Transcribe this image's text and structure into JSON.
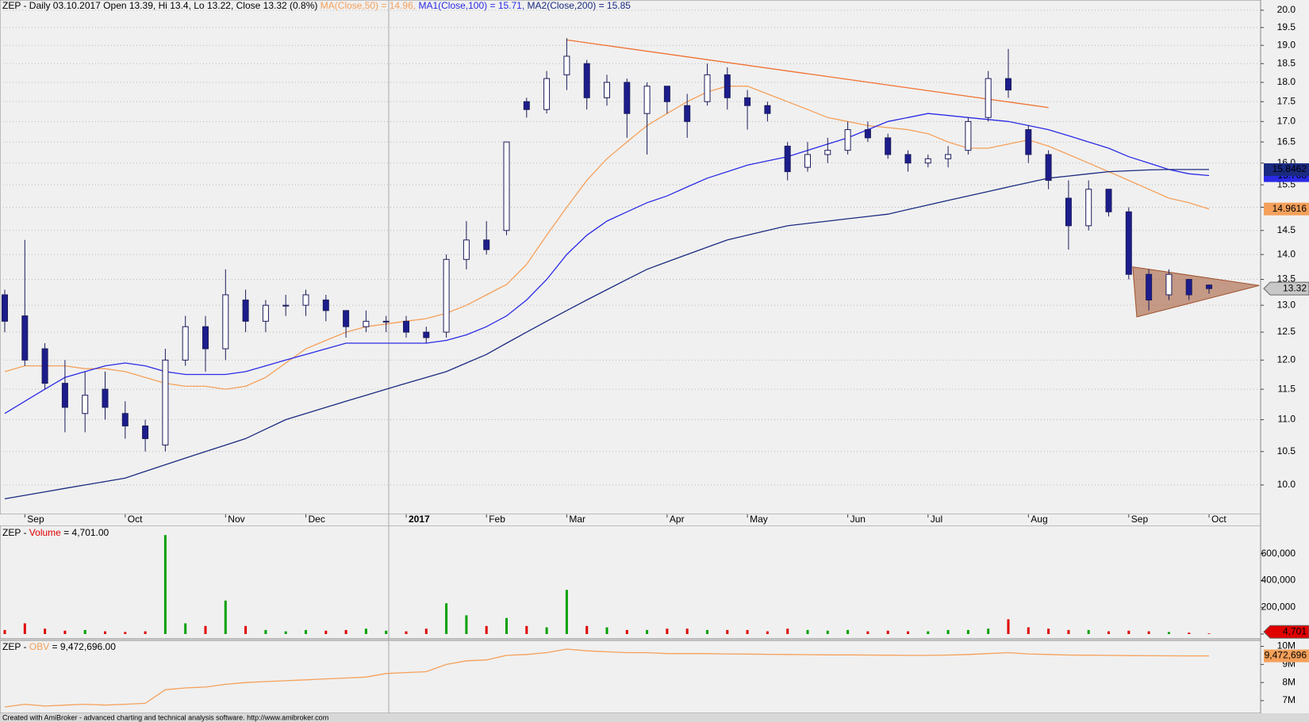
{
  "chart_data": [
    {
      "type": "candlestick",
      "title": "ZEP - Daily 03.10.2017 Open 13.39, Hi 13.4, Lo 13.22, Close 13.32 (0.8%)",
      "categories": [
        null,
        "Sep",
        null,
        null,
        null,
        null,
        "Oct",
        null,
        null,
        null,
        null,
        "Nov",
        null,
        null,
        null,
        "Dec",
        null,
        null,
        null,
        null,
        "2017",
        null,
        null,
        null,
        "Feb",
        null,
        null,
        null,
        "Mar",
        null,
        null,
        null,
        null,
        "Apr",
        null,
        null,
        null,
        "May",
        null,
        null,
        null,
        null,
        "Jun",
        null,
        null,
        null,
        "Jul",
        null,
        null,
        null,
        null,
        "Aug",
        null,
        null,
        null,
        null,
        "Sep",
        null,
        null,
        null,
        "Oct"
      ],
      "open": [
        13.2,
        12.8,
        12.2,
        11.6,
        11.1,
        11.5,
        11.1,
        10.9,
        10.6,
        12.0,
        12.6,
        12.2,
        13.1,
        12.7,
        13.0,
        13.0,
        13.1,
        12.9,
        12.6,
        12.7,
        12.7,
        12.5,
        12.5,
        13.9,
        14.3,
        14.5,
        17.5,
        17.3,
        18.2,
        18.5,
        17.6,
        18.0,
        17.2,
        17.9,
        17.4,
        17.5,
        18.2,
        17.6,
        17.4,
        16.4,
        15.9,
        16.2,
        16.3,
        16.8,
        16.6,
        16.2,
        16.0,
        16.1,
        16.3,
        17.1,
        18.1,
        16.8,
        16.2,
        15.2,
        14.6,
        15.4,
        14.9,
        13.6,
        13.2,
        13.5,
        13.39
      ],
      "high": [
        13.3,
        14.3,
        12.3,
        12.0,
        11.8,
        11.8,
        11.3,
        11.0,
        12.2,
        12.8,
        12.8,
        13.7,
        13.3,
        13.1,
        13.2,
        13.3,
        13.2,
        12.9,
        12.9,
        12.8,
        12.8,
        12.6,
        14.0,
        14.7,
        14.7,
        16.5,
        17.6,
        18.3,
        19.2,
        18.6,
        18.2,
        18.1,
        18.0,
        17.9,
        17.7,
        18.5,
        18.4,
        17.8,
        17.5,
        16.5,
        16.5,
        16.6,
        17.0,
        17.0,
        16.7,
        16.3,
        16.2,
        16.4,
        17.1,
        18.3,
        18.9,
        16.9,
        16.3,
        15.6,
        15.6,
        15.4,
        15.0,
        13.7,
        13.7,
        13.5,
        13.4
      ],
      "low": [
        12.5,
        11.9,
        11.5,
        10.8,
        10.8,
        11.0,
        10.7,
        10.5,
        10.5,
        11.9,
        11.8,
        12.0,
        12.5,
        12.5,
        12.8,
        12.8,
        12.7,
        12.4,
        12.5,
        12.5,
        12.4,
        12.3,
        12.4,
        13.7,
        14.0,
        14.4,
        17.1,
        17.2,
        17.8,
        17.3,
        17.4,
        16.6,
        16.2,
        17.2,
        16.6,
        17.4,
        17.3,
        16.8,
        17.0,
        15.6,
        15.8,
        16.0,
        16.2,
        16.5,
        16.1,
        15.8,
        15.9,
        15.9,
        16.2,
        17.0,
        17.6,
        16.0,
        15.4,
        14.1,
        14.5,
        14.8,
        13.5,
        12.9,
        13.1,
        13.1,
        13.22
      ],
      "close": [
        12.7,
        12.0,
        11.6,
        11.2,
        11.4,
        11.2,
        10.9,
        10.7,
        12.0,
        12.6,
        12.2,
        13.2,
        12.7,
        13.0,
        13.0,
        13.2,
        12.9,
        12.6,
        12.7,
        12.7,
        12.5,
        12.4,
        13.9,
        14.3,
        14.1,
        16.5,
        17.3,
        18.1,
        18.7,
        17.6,
        18.0,
        17.2,
        17.9,
        17.5,
        17.0,
        18.2,
        17.6,
        17.4,
        17.2,
        15.8,
        16.2,
        16.3,
        16.8,
        16.6,
        16.2,
        16.0,
        16.1,
        16.2,
        17.0,
        18.1,
        17.8,
        16.2,
        15.6,
        14.6,
        15.4,
        14.9,
        13.6,
        13.1,
        13.6,
        13.2,
        13.32
      ],
      "last_close": 13.32,
      "up_color": "#ffffff",
      "down_color": "#1c1c8c",
      "wick_color": "#1c1c5c",
      "series": [
        {
          "name": "MA(Close,50) = 14.96,",
          "color": "#f5a05a",
          "last_value": 14.9616,
          "values": [
            11.8,
            11.9,
            11.9,
            11.9,
            11.85,
            11.85,
            11.8,
            11.7,
            11.6,
            11.55,
            11.55,
            11.5,
            11.55,
            11.7,
            11.95,
            12.2,
            12.35,
            12.5,
            12.6,
            12.65,
            12.7,
            12.75,
            12.85,
            13.0,
            13.2,
            13.4,
            13.8,
            14.4,
            15.0,
            15.6,
            16.1,
            16.5,
            16.9,
            17.2,
            17.5,
            17.75,
            17.9,
            17.9,
            17.7,
            17.5,
            17.3,
            17.1,
            17.0,
            16.9,
            16.85,
            16.8,
            16.7,
            16.5,
            16.35,
            16.35,
            16.45,
            16.55,
            16.4,
            16.2,
            16.0,
            15.8,
            15.6,
            15.4,
            15.2,
            15.1,
            14.96
          ]
        },
        {
          "name": "MA1(Close,100) = 15.71,",
          "color": "#2a2ae6",
          "last_value": 15.708,
          "values": [
            11.1,
            11.3,
            11.5,
            11.7,
            11.8,
            11.9,
            11.95,
            11.9,
            11.8,
            11.75,
            11.75,
            11.75,
            11.8,
            11.9,
            12.0,
            12.1,
            12.2,
            12.3,
            12.3,
            12.3,
            12.3,
            12.3,
            12.35,
            12.45,
            12.6,
            12.8,
            13.1,
            13.5,
            14.0,
            14.4,
            14.7,
            14.9,
            15.1,
            15.25,
            15.45,
            15.65,
            15.8,
            15.95,
            16.05,
            16.15,
            16.3,
            16.45,
            16.6,
            16.8,
            17.0,
            17.1,
            17.2,
            17.15,
            17.1,
            17.05,
            17.0,
            16.9,
            16.8,
            16.65,
            16.5,
            16.35,
            16.15,
            16.0,
            15.85,
            15.75,
            15.71
          ]
        },
        {
          "name": "MA2(Close,200) = 15.85",
          "color": "#1a2a80",
          "last_value": 15.8462,
          "values": [
            9.8,
            9.85,
            9.9,
            9.95,
            10.0,
            10.05,
            10.1,
            10.2,
            10.3,
            10.4,
            10.5,
            10.6,
            10.7,
            10.85,
            11.0,
            11.1,
            11.2,
            11.3,
            11.4,
            11.5,
            11.6,
            11.7,
            11.8,
            11.95,
            12.1,
            12.3,
            12.5,
            12.7,
            12.9,
            13.1,
            13.3,
            13.5,
            13.7,
            13.85,
            14.0,
            14.15,
            14.3,
            14.4,
            14.5,
            14.6,
            14.65,
            14.7,
            14.75,
            14.8,
            14.85,
            14.95,
            15.05,
            15.15,
            15.25,
            15.35,
            15.45,
            15.55,
            15.65,
            15.7,
            15.75,
            15.8,
            15.82,
            15.84,
            15.85,
            15.85,
            15.85
          ]
        }
      ],
      "trendline": {
        "color": "#f07030",
        "x": [
          28,
          52
        ],
        "y": [
          19.15,
          17.35
        ]
      },
      "triangle": {
        "color": "#a0522d",
        "x": [
          56.2,
          62.5,
          56.4
        ],
        "y": [
          13.75,
          13.38,
          12.78
        ]
      },
      "log_scale": true,
      "grid": true,
      "ylim": [
        9.58,
        20.3
      ],
      "yticks": [
        {
          "value": 10,
          "label": "10.0"
        },
        {
          "value": 10.5,
          "label": "10.5"
        },
        {
          "value": 11,
          "label": "11.0"
        },
        {
          "value": 11.5,
          "label": "11.5"
        },
        {
          "value": 12,
          "label": "12.0"
        },
        {
          "value": 12.5,
          "label": "12.5"
        },
        {
          "value": 13,
          "label": "13.0"
        },
        {
          "value": 13.5,
          "label": "13.5"
        },
        {
          "value": 14,
          "label": "14.0"
        },
        {
          "value": 14.5,
          "label": "14.5"
        },
        {
          "value": 15,
          "label": "15.0"
        },
        {
          "value": 15.5,
          "label": "15.5"
        },
        {
          "value": 16,
          "label": "16.0"
        },
        {
          "value": 16.5,
          "label": "16.5"
        },
        {
          "value": 17,
          "label": "17.0"
        },
        {
          "value": 17.5,
          "label": "17.5"
        },
        {
          "value": 18,
          "label": "18.0"
        },
        {
          "value": 18.5,
          "label": "18.5"
        },
        {
          "value": 19,
          "label": "19.0"
        },
        {
          "value": 19.5,
          "label": "19.5"
        },
        {
          "value": 20,
          "label": "20.0"
        }
      ]
    },
    {
      "type": "bar",
      "title": "ZEP -",
      "series_name": "Volume",
      "title_value": "= 4,701.00",
      "up_color": "#00a000",
      "down_color": "#e00000",
      "values": [
        30000,
        80000,
        40000,
        25000,
        30000,
        20000,
        15000,
        20000,
        740000,
        80000,
        60000,
        250000,
        60000,
        30000,
        20000,
        30000,
        25000,
        30000,
        40000,
        25000,
        20000,
        40000,
        230000,
        140000,
        60000,
        120000,
        60000,
        50000,
        330000,
        60000,
        50000,
        30000,
        30000,
        40000,
        40000,
        30000,
        30000,
        30000,
        20000,
        40000,
        30000,
        25000,
        30000,
        20000,
        25000,
        20000,
        20000,
        30000,
        30000,
        40000,
        110000,
        50000,
        40000,
        30000,
        30000,
        20000,
        25000,
        20000,
        15000,
        10000,
        4701
      ],
      "last_label": "4,701",
      "ylim": [
        0,
        800000
      ],
      "yticks": [
        0,
        {
          "value": 200000,
          "label": "200,000"
        },
        {
          "value": 400000,
          "label": "400,000"
        },
        {
          "value": 600000,
          "label": "600,000"
        }
      ]
    },
    {
      "type": "line",
      "title": "ZEP -",
      "series_name": "OBV",
      "title_value": "= 9,472,696.00",
      "color": "#f5a05a",
      "values": [
        6650000,
        6800000,
        6700000,
        6750000,
        6800000,
        6750000,
        6800000,
        6850000,
        7600000,
        7700000,
        7750000,
        7900000,
        8000000,
        8050000,
        8100000,
        8150000,
        8200000,
        8250000,
        8300000,
        8500000,
        8550000,
        8600000,
        9000000,
        9200000,
        9250000,
        9500000,
        9550000,
        9650000,
        9850000,
        9750000,
        9700000,
        9650000,
        9650000,
        9600000,
        9600000,
        9600000,
        9580000,
        9570000,
        9560000,
        9550000,
        9540000,
        9530000,
        9530000,
        9520000,
        9510000,
        9500000,
        9500000,
        9520000,
        9550000,
        9600000,
        9650000,
        9580000,
        9550000,
        9520000,
        9510000,
        9500000,
        9490000,
        9480000,
        9475000,
        9473000,
        9472696
      ],
      "last_label": "9,472,696",
      "ylim": [
        6300000,
        10330000
      ],
      "yticks": [
        {
          "value": 7000000,
          "label": "7M"
        },
        {
          "value": 8000000,
          "label": "8M"
        },
        {
          "value": 9000000,
          "label": "9M"
        },
        {
          "value": 10000000,
          "label": "10M"
        }
      ]
    }
  ],
  "footer": "Created with AmiBroker - advanced charting and technical analysis software. http://www.amibroker.com"
}
